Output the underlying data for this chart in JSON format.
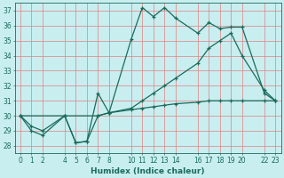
{
  "xlabel": "Humidex (Indice chaleur)",
  "bg_color": "#c8eef0",
  "grid_color": "#e08080",
  "line_color": "#1a6b5a",
  "ylim": [
    27.5,
    37.5
  ],
  "xlim": [
    -0.5,
    23.5
  ],
  "yticks": [
    28,
    29,
    30,
    31,
    32,
    33,
    34,
    35,
    36,
    37
  ],
  "xticks": [
    0,
    1,
    2,
    4,
    5,
    6,
    7,
    8,
    10,
    11,
    12,
    13,
    14,
    16,
    17,
    18,
    19,
    20,
    22,
    23
  ],
  "xlabels": [
    "0",
    "1",
    "2",
    "4",
    "5",
    "6",
    "7",
    "8",
    "10",
    "11",
    "12",
    "13",
    "14",
    "16",
    "17",
    "18",
    "19",
    "20",
    "22",
    "23"
  ],
  "line1_x": [
    0,
    1,
    2,
    4,
    5,
    6,
    7,
    8,
    10,
    11,
    12,
    13,
    14,
    16,
    17,
    18,
    19,
    20,
    22,
    23
  ],
  "line1_y": [
    30,
    29,
    28.7,
    30.0,
    28.2,
    28.3,
    31.5,
    30.2,
    35.1,
    37.2,
    36.6,
    37.2,
    36.5,
    35.5,
    36.2,
    35.8,
    35.9,
    35.9,
    31.5,
    31.0
  ],
  "line2_x": [
    0,
    1,
    2,
    4,
    5,
    6,
    7,
    8,
    10,
    11,
    12,
    13,
    14,
    16,
    17,
    18,
    19,
    20,
    22,
    23
  ],
  "line2_y": [
    30.0,
    29.3,
    29.0,
    30.0,
    28.2,
    28.3,
    30.0,
    30.2,
    30.4,
    30.5,
    30.6,
    30.7,
    30.8,
    30.9,
    31.0,
    31.0,
    31.0,
    31.0,
    31.0,
    31.0
  ],
  "line3_x": [
    0,
    4,
    7,
    8,
    10,
    11,
    12,
    13,
    14,
    16,
    17,
    18,
    19,
    20,
    22,
    23
  ],
  "line3_y": [
    30.0,
    30.0,
    30.0,
    30.2,
    30.5,
    31.0,
    31.5,
    32.0,
    32.5,
    33.5,
    34.5,
    35.0,
    35.5,
    34.0,
    31.7,
    31.0
  ]
}
